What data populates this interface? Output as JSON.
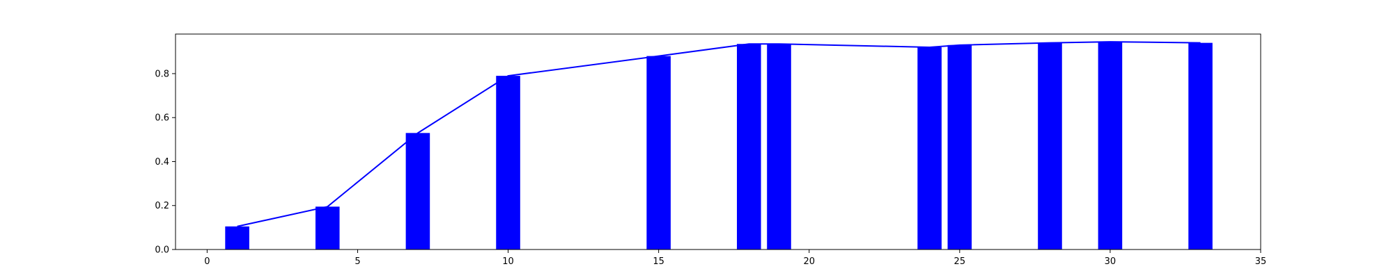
{
  "chart_data": {
    "type": "bar",
    "x": [
      1,
      4,
      7,
      10,
      15,
      18,
      19,
      24,
      25,
      28,
      30,
      33
    ],
    "values": [
      0.105,
      0.195,
      0.53,
      0.79,
      0.88,
      0.935,
      0.935,
      0.92,
      0.93,
      0.94,
      0.945,
      0.94
    ],
    "bar_width": 0.8,
    "overlay_line": true,
    "xlim": [
      -1.05,
      35
    ],
    "ylim": [
      0,
      0.98
    ],
    "xticks": [
      0,
      5,
      10,
      15,
      20,
      25,
      30,
      35
    ],
    "yticks": [
      0.0,
      0.2,
      0.4,
      0.6,
      0.8
    ],
    "xtick_labels": [
      "0",
      "5",
      "10",
      "15",
      "20",
      "25",
      "30",
      "35"
    ],
    "ytick_labels": [
      "0.0",
      "0.2",
      "0.4",
      "0.6",
      "0.8"
    ],
    "title": "",
    "xlabel": "",
    "ylabel": "",
    "grid": false,
    "colors": {
      "bar": "#0000ff",
      "line": "#0000ff",
      "axes": "#000000"
    }
  }
}
